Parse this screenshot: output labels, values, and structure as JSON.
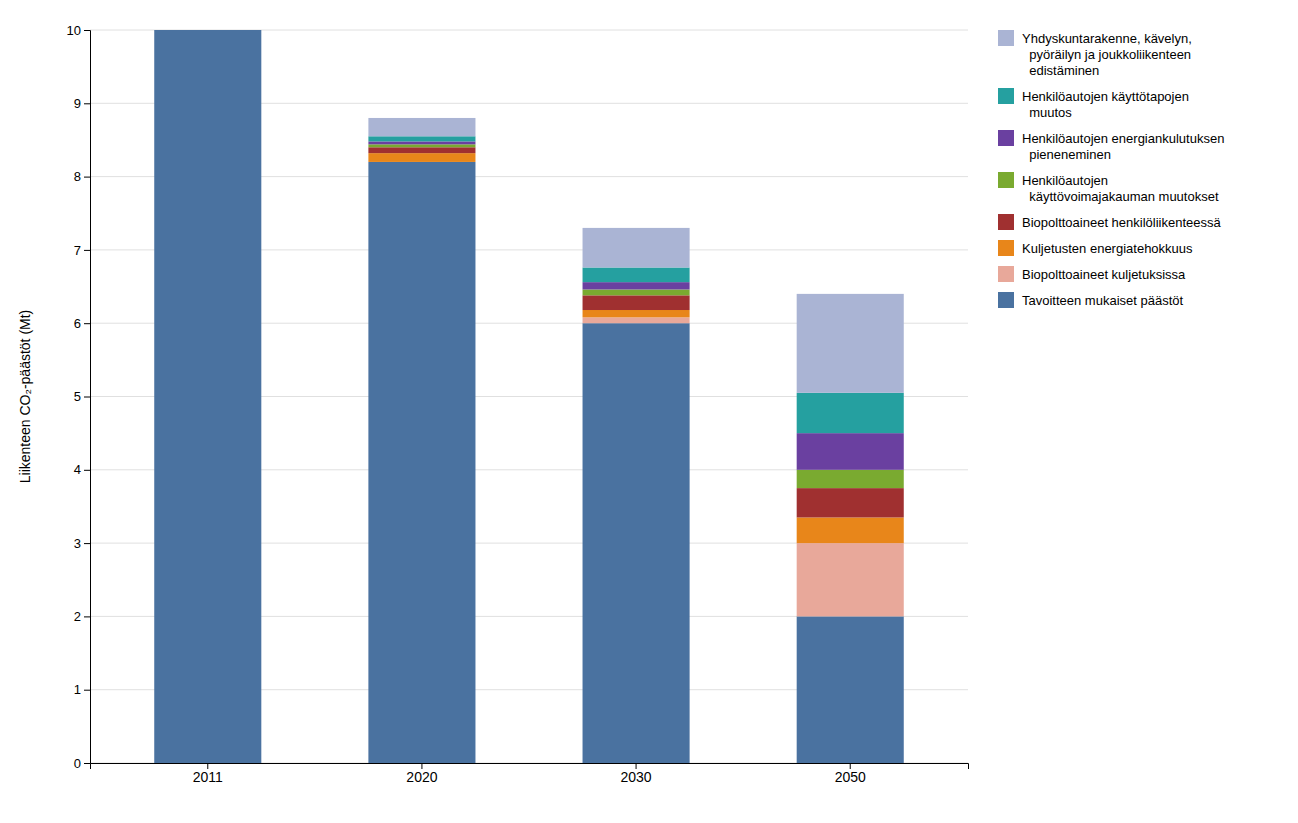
{
  "chart_data": {
    "type": "bar",
    "stacked": true,
    "ylabel": "Liikenteen CO₂-päästöt (Mt)",
    "categories": [
      "2011",
      "2020",
      "2030",
      "2050"
    ],
    "series": [
      {
        "name": "Tavoitteen mukaiset päästöt",
        "color": "#4a72a0",
        "values": [
          10.0,
          8.2,
          6.0,
          2.0
        ]
      },
      {
        "name": "Biopolttoaineet kuljetuksissa",
        "color": "#e8a89a",
        "values": [
          0.0,
          0.0,
          0.08,
          1.0
        ]
      },
      {
        "name": "Kuljetusten energiatehokkuus",
        "color": "#e8861a",
        "values": [
          0.0,
          0.12,
          0.1,
          0.35
        ]
      },
      {
        "name": "Biopolttoaineet henkilöliikenteessä",
        "color": "#a03030",
        "values": [
          0.0,
          0.08,
          0.2,
          0.4
        ]
      },
      {
        "name": "Henkilöautojen\n  käyttövoimajakauman muutokset",
        "color": "#7aaa30",
        "values": [
          0.0,
          0.04,
          0.08,
          0.25
        ]
      },
      {
        "name": "Henkilöautojen energiankulutuksen\n  pieneneminen",
        "color": "#6a40a0",
        "values": [
          0.0,
          0.04,
          0.1,
          0.5
        ]
      },
      {
        "name": "Henkilöautojen käyttötapojen\n  muutos",
        "color": "#25a0a0",
        "values": [
          0.0,
          0.07,
          0.2,
          0.55
        ]
      },
      {
        "name": "Yhdyskuntarakenne, kävelyn,\n  pyöräilyn ja joukkoliikenteen\n  edistäminen",
        "color": "#aab4d4",
        "values": [
          0.0,
          0.25,
          0.54,
          1.35
        ]
      }
    ],
    "ylim": [
      0,
      10
    ],
    "yticks": [
      0,
      1,
      2,
      3,
      4,
      5,
      6,
      7,
      8,
      9,
      10
    ],
    "grid": true,
    "legend": "right"
  }
}
